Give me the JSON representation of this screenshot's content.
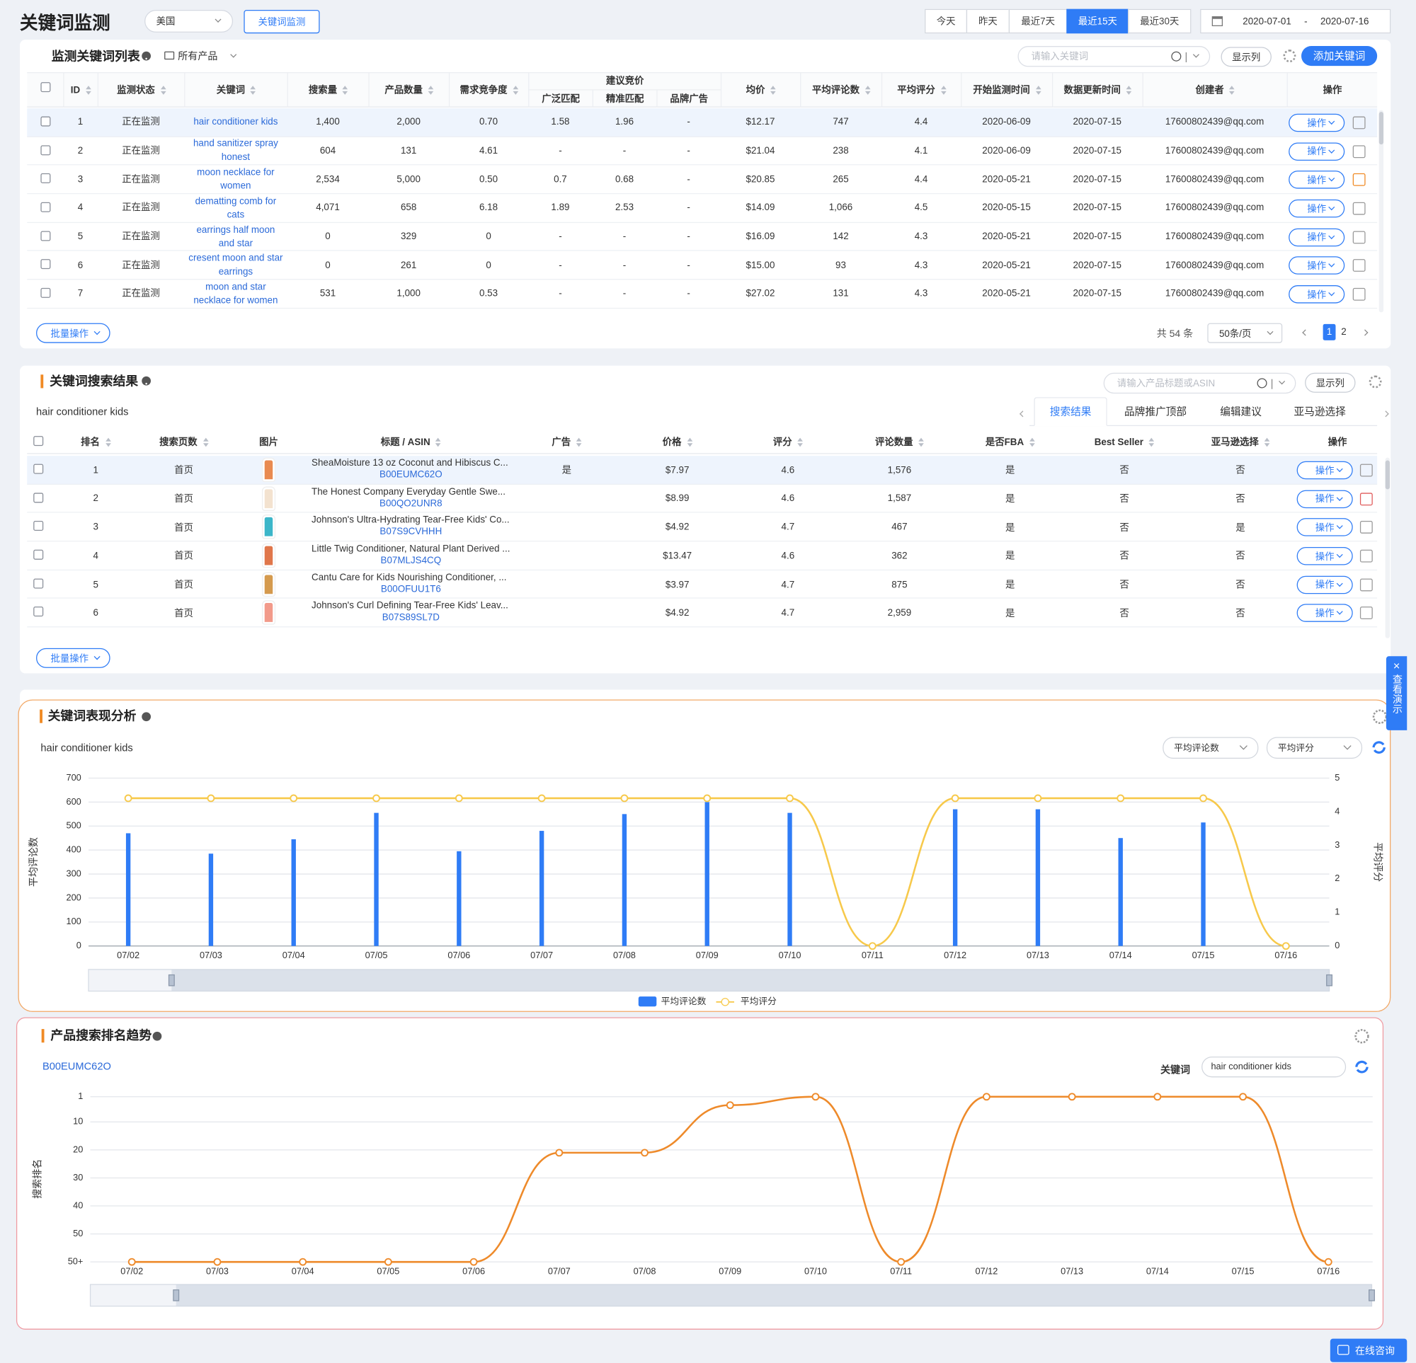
{
  "header": {
    "title": "关键词监测",
    "country": "美国",
    "monitor_button": "关键词监测",
    "ranges": [
      "今天",
      "昨天",
      "最近7天",
      "最近15天",
      "最近30天"
    ],
    "active_range": 3,
    "date_start": "2020-07-01",
    "date_sep": "-",
    "date_end": "2020-07-16"
  },
  "keyword_list": {
    "title": "监测关键词列表",
    "product_filter": "所有产品",
    "search_placeholder": "请输入关键词",
    "show_columns": "显示列",
    "add_button": "添加关键词",
    "bid_group": "建议竞价",
    "columns": [
      "ID",
      "监测状态",
      "关键词",
      "搜索量",
      "产品数量",
      "需求竞争度",
      "广泛匹配",
      "精准匹配",
      "品牌广告",
      "均价",
      "平均评论数",
      "平均评分",
      "开始监测时间",
      "数据更新时间",
      "创建者",
      "操作"
    ],
    "action": "操作",
    "rows": [
      [
        "1",
        "正在监测",
        "hair conditioner kids",
        "1,400",
        "2,000",
        "0.70",
        "1.58",
        "1.96",
        "-",
        "$12.17",
        "747",
        "4.4",
        "2020-06-09",
        "2020-07-15",
        "17600802439@qq.com"
      ],
      [
        "2",
        "正在监测",
        "hand sanitizer spray honest",
        "604",
        "131",
        "4.61",
        "-",
        "-",
        "-",
        "$21.04",
        "238",
        "4.1",
        "2020-06-09",
        "2020-07-15",
        "17600802439@qq.com"
      ],
      [
        "3",
        "正在监测",
        "moon necklace for women",
        "2,534",
        "5,000",
        "0.50",
        "0.7",
        "0.68",
        "-",
        "$20.85",
        "265",
        "4.4",
        "2020-05-21",
        "2020-07-15",
        "17600802439@qq.com"
      ],
      [
        "4",
        "正在监测",
        "dematting comb for cats",
        "4,071",
        "658",
        "6.18",
        "1.89",
        "2.53",
        "-",
        "$14.09",
        "1,066",
        "4.5",
        "2020-05-15",
        "2020-07-15",
        "17600802439@qq.com"
      ],
      [
        "5",
        "正在监测",
        "earrings half moon and star",
        "0",
        "329",
        "0",
        "-",
        "-",
        "-",
        "$16.09",
        "142",
        "4.3",
        "2020-05-21",
        "2020-07-15",
        "17600802439@qq.com"
      ],
      [
        "6",
        "正在监测",
        "cresent moon and star earrings",
        "0",
        "261",
        "0",
        "-",
        "-",
        "-",
        "$15.00",
        "93",
        "4.3",
        "2020-05-21",
        "2020-07-15",
        "17600802439@qq.com"
      ],
      [
        "7",
        "正在监测",
        "moon and star necklace for women",
        "531",
        "1,000",
        "0.53",
        "-",
        "-",
        "-",
        "$27.02",
        "131",
        "4.3",
        "2020-05-21",
        "2020-07-15",
        "17600802439@qq.com"
      ]
    ],
    "batch": "批量操作",
    "total": "共 54 条",
    "page_size": "50条/页",
    "pages": [
      "1",
      "2"
    ],
    "active_page": 0
  },
  "search_results": {
    "title": "关键词搜索结果",
    "search_placeholder": "请输入产品标题或ASIN",
    "show_columns": "显示列",
    "keyword": "hair conditioner kids",
    "tabs": [
      "搜索结果",
      "品牌推广顶部",
      "编辑建议",
      "亚马逊选择"
    ],
    "active_tab": 0,
    "columns": [
      "排名",
      "搜索页数",
      "图片",
      "标题 / ASIN",
      "广告",
      "价格",
      "评分",
      "评论数量",
      "是否FBA",
      "Best Seller",
      "亚马逊选择",
      "操作"
    ],
    "action": "操作",
    "rows": [
      {
        "rank": "1",
        "page": "首页",
        "title": "SheaMoisture 13 oz Coconut and Hibiscus C...",
        "asin": "B00EUMC62O",
        "ad": "是",
        "price": "$7.97",
        "rating": "4.6",
        "reviews": "1,576",
        "fba": "是",
        "best_seller": "否",
        "choice": "否"
      },
      {
        "rank": "2",
        "page": "首页",
        "title": "The Honest Company Everyday Gentle Swe...",
        "asin": "B00QO2UNR8",
        "price": "$8.99",
        "rating": "4.6",
        "reviews": "1,587",
        "fba": "是",
        "best_seller": "否",
        "choice": "否"
      },
      {
        "rank": "3",
        "page": "首页",
        "title": "Johnson's Ultra-Hydrating Tear-Free Kids' Co...",
        "asin": "B07S9CVHHH",
        "price": "$4.92",
        "rating": "4.7",
        "reviews": "467",
        "fba": "是",
        "best_seller": "否",
        "choice": "是"
      },
      {
        "rank": "4",
        "page": "首页",
        "title": "Little Twig Conditioner, Natural Plant Derived ...",
        "asin": "B07MLJS4CQ",
        "price": "$13.47",
        "rating": "4.6",
        "reviews": "362",
        "fba": "是",
        "best_seller": "否",
        "choice": "否"
      },
      {
        "rank": "5",
        "page": "首页",
        "title": "Cantu Care for Kids Nourishing Conditioner, ...",
        "asin": "B00OFUU1T6",
        "price": "$3.97",
        "rating": "4.7",
        "reviews": "875",
        "fba": "是",
        "best_seller": "否",
        "choice": "否"
      },
      {
        "rank": "6",
        "page": "首页",
        "title": "Johnson's Curl Defining Tear-Free Kids' Leav...",
        "asin": "B07S89SL7D",
        "price": "$4.92",
        "rating": "4.7",
        "reviews": "2,959",
        "fba": "是",
        "best_seller": "否",
        "choice": "否"
      }
    ],
    "batch": "批量操作"
  },
  "side_tab": {
    "close": "×",
    "label": "查看演示"
  },
  "chat_button": "在线咨询",
  "chart_data": [
    {
      "type": "combo",
      "title": "关键词表现分析",
      "subtitle": "hair conditioner kids",
      "selectors": [
        "平均评论数",
        "平均评分"
      ],
      "y_label": "平均评论数",
      "y2_label": "平均评分",
      "categories": [
        "07/02",
        "07/03",
        "07/04",
        "07/05",
        "07/06",
        "07/07",
        "07/08",
        "07/09",
        "07/10",
        "07/11",
        "07/12",
        "07/13",
        "07/14",
        "07/15",
        "07/16"
      ],
      "series": [
        {
          "name": "平均评论数",
          "type": "bar",
          "color": "#2f7cf6",
          "values": [
            470,
            385,
            445,
            555,
            395,
            480,
            550,
            600,
            555,
            null,
            570,
            570,
            450,
            515,
            null
          ]
        },
        {
          "name": "平均评分",
          "type": "line",
          "axis": "y2",
          "color": "#f7c94b",
          "values": [
            4.4,
            4.4,
            4.4,
            4.4,
            4.4,
            4.4,
            4.4,
            4.4,
            4.4,
            0,
            4.4,
            4.4,
            4.4,
            4.4,
            0
          ]
        }
      ],
      "ylim": [
        0,
        700
      ],
      "yticks": [
        0,
        100,
        200,
        300,
        400,
        500,
        600,
        700
      ],
      "y2lim": [
        0,
        5
      ],
      "y2ticks": [
        0,
        1,
        2,
        3,
        4,
        5
      ],
      "grid": true,
      "legend": "bottom"
    },
    {
      "type": "line",
      "title": "产品搜索排名趋势",
      "subtitle": "B00EUMC62O",
      "keyword_label": "关键词",
      "keyword_value": "hair conditioner kids",
      "y_label": "搜索排名",
      "categories": [
        "07/02",
        "07/03",
        "07/04",
        "07/05",
        "07/06",
        "07/07",
        "07/08",
        "07/09",
        "07/10",
        "07/11",
        "07/12",
        "07/13",
        "07/14",
        "07/15",
        "07/16"
      ],
      "values": [
        60,
        60,
        60,
        60,
        60,
        21,
        21,
        4,
        1,
        60,
        1,
        1,
        1,
        1,
        60
      ],
      "color": "#ee8a2a",
      "ylim": [
        1,
        60
      ],
      "y_inverted": true,
      "yticks": [
        1,
        10,
        20,
        30,
        40,
        50,
        {
          "value": 60,
          "label": "50+"
        }
      ],
      "grid": true
    }
  ]
}
